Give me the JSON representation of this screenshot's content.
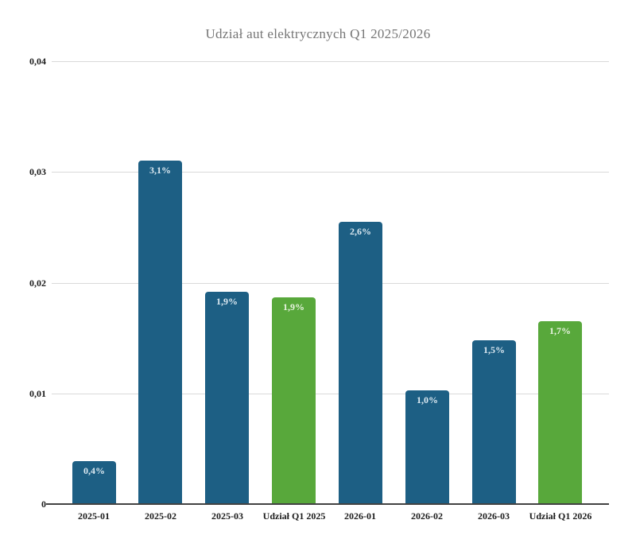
{
  "chart_data": {
    "type": "bar",
    "title": "Udział aut elektrycznych Q1 2025/2026",
    "categories": [
      "2025-01",
      "2025-02",
      "2025-03",
      "Udział Q1 2025",
      "2026-01",
      "2026-02",
      "2026-03",
      "Udział Q1 2026"
    ],
    "values": [
      0.0039,
      0.031,
      0.0192,
      0.0187,
      0.0255,
      0.0103,
      0.0148,
      0.0165
    ],
    "value_labels": [
      "0,4%",
      "3,1%",
      "1,9%",
      "1,9%",
      "2,6%",
      "1,0%",
      "1,5%",
      "1,7%"
    ],
    "bar_colors": [
      "#1d5f84",
      "#1d5f84",
      "#1d5f84",
      "#58a83b",
      "#1d5f84",
      "#1d5f84",
      "#1d5f84",
      "#58a83b"
    ],
    "bar_label_colors": [
      "#dce9f1",
      "#dce9f1",
      "#dce9f1",
      "#eaf4e2",
      "#dce9f1",
      "#dce9f1",
      "#dce9f1",
      "#eaf4e2"
    ],
    "xlabel": "",
    "ylabel": "",
    "y_ticks": [
      {
        "label": "0",
        "value": 0
      },
      {
        "label": "0,01",
        "value": 0.01
      },
      {
        "label": "0,02",
        "value": 0.02
      },
      {
        "label": "0,03",
        "value": 0.03
      },
      {
        "label": "0,04",
        "value": 0.04
      }
    ],
    "ylim": [
      0,
      0.04
    ],
    "grid": true,
    "legend": "none",
    "colors": {
      "bar_blue": "#1d5f84",
      "bar_green": "#58a83b",
      "gridline": "#d9d9d9",
      "axis_line": "#424242",
      "title_text": "#757575",
      "tick_text": "#1c1c1c"
    }
  }
}
